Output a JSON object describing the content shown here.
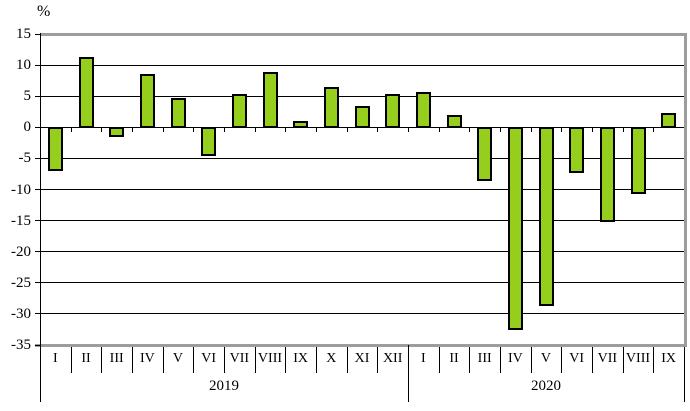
{
  "chart_data": {
    "type": "bar",
    "title": "",
    "ylabel": "%",
    "xlabel": "",
    "ylim": [
      -35,
      15
    ],
    "ytick_step": 5,
    "ytick_labels": [
      "15",
      "10",
      "5",
      "0",
      "-5",
      "-10",
      "-15",
      "-20",
      "-25",
      "-30",
      "-35"
    ],
    "grid": true,
    "legend": false,
    "colors": {
      "bar_fill": "#95ce1d",
      "bar_border": "#000000",
      "wall": "#9d9d9d",
      "gridline": "#000000",
      "background": "#ffffff"
    },
    "groups": [
      {
        "label": "2019",
        "categories": [
          "I",
          "II",
          "III",
          "IV",
          "V",
          "VI",
          "VII",
          "VIII",
          "IX",
          "X",
          "XI",
          "XII"
        ],
        "values": [
          -6.9,
          11.3,
          -1.4,
          8.6,
          4.7,
          -4.4,
          5.4,
          8.9,
          1.0,
          6.5,
          3.4,
          5.3
        ]
      },
      {
        "label": "2020",
        "categories": [
          "I",
          "II",
          "III",
          "IV",
          "V",
          "VI",
          "VII",
          "VIII",
          "IX"
        ],
        "values": [
          5.7,
          2.0,
          -8.4,
          -32.4,
          -28.5,
          -7.2,
          -15.0,
          -10.5,
          2.3
        ]
      }
    ]
  }
}
